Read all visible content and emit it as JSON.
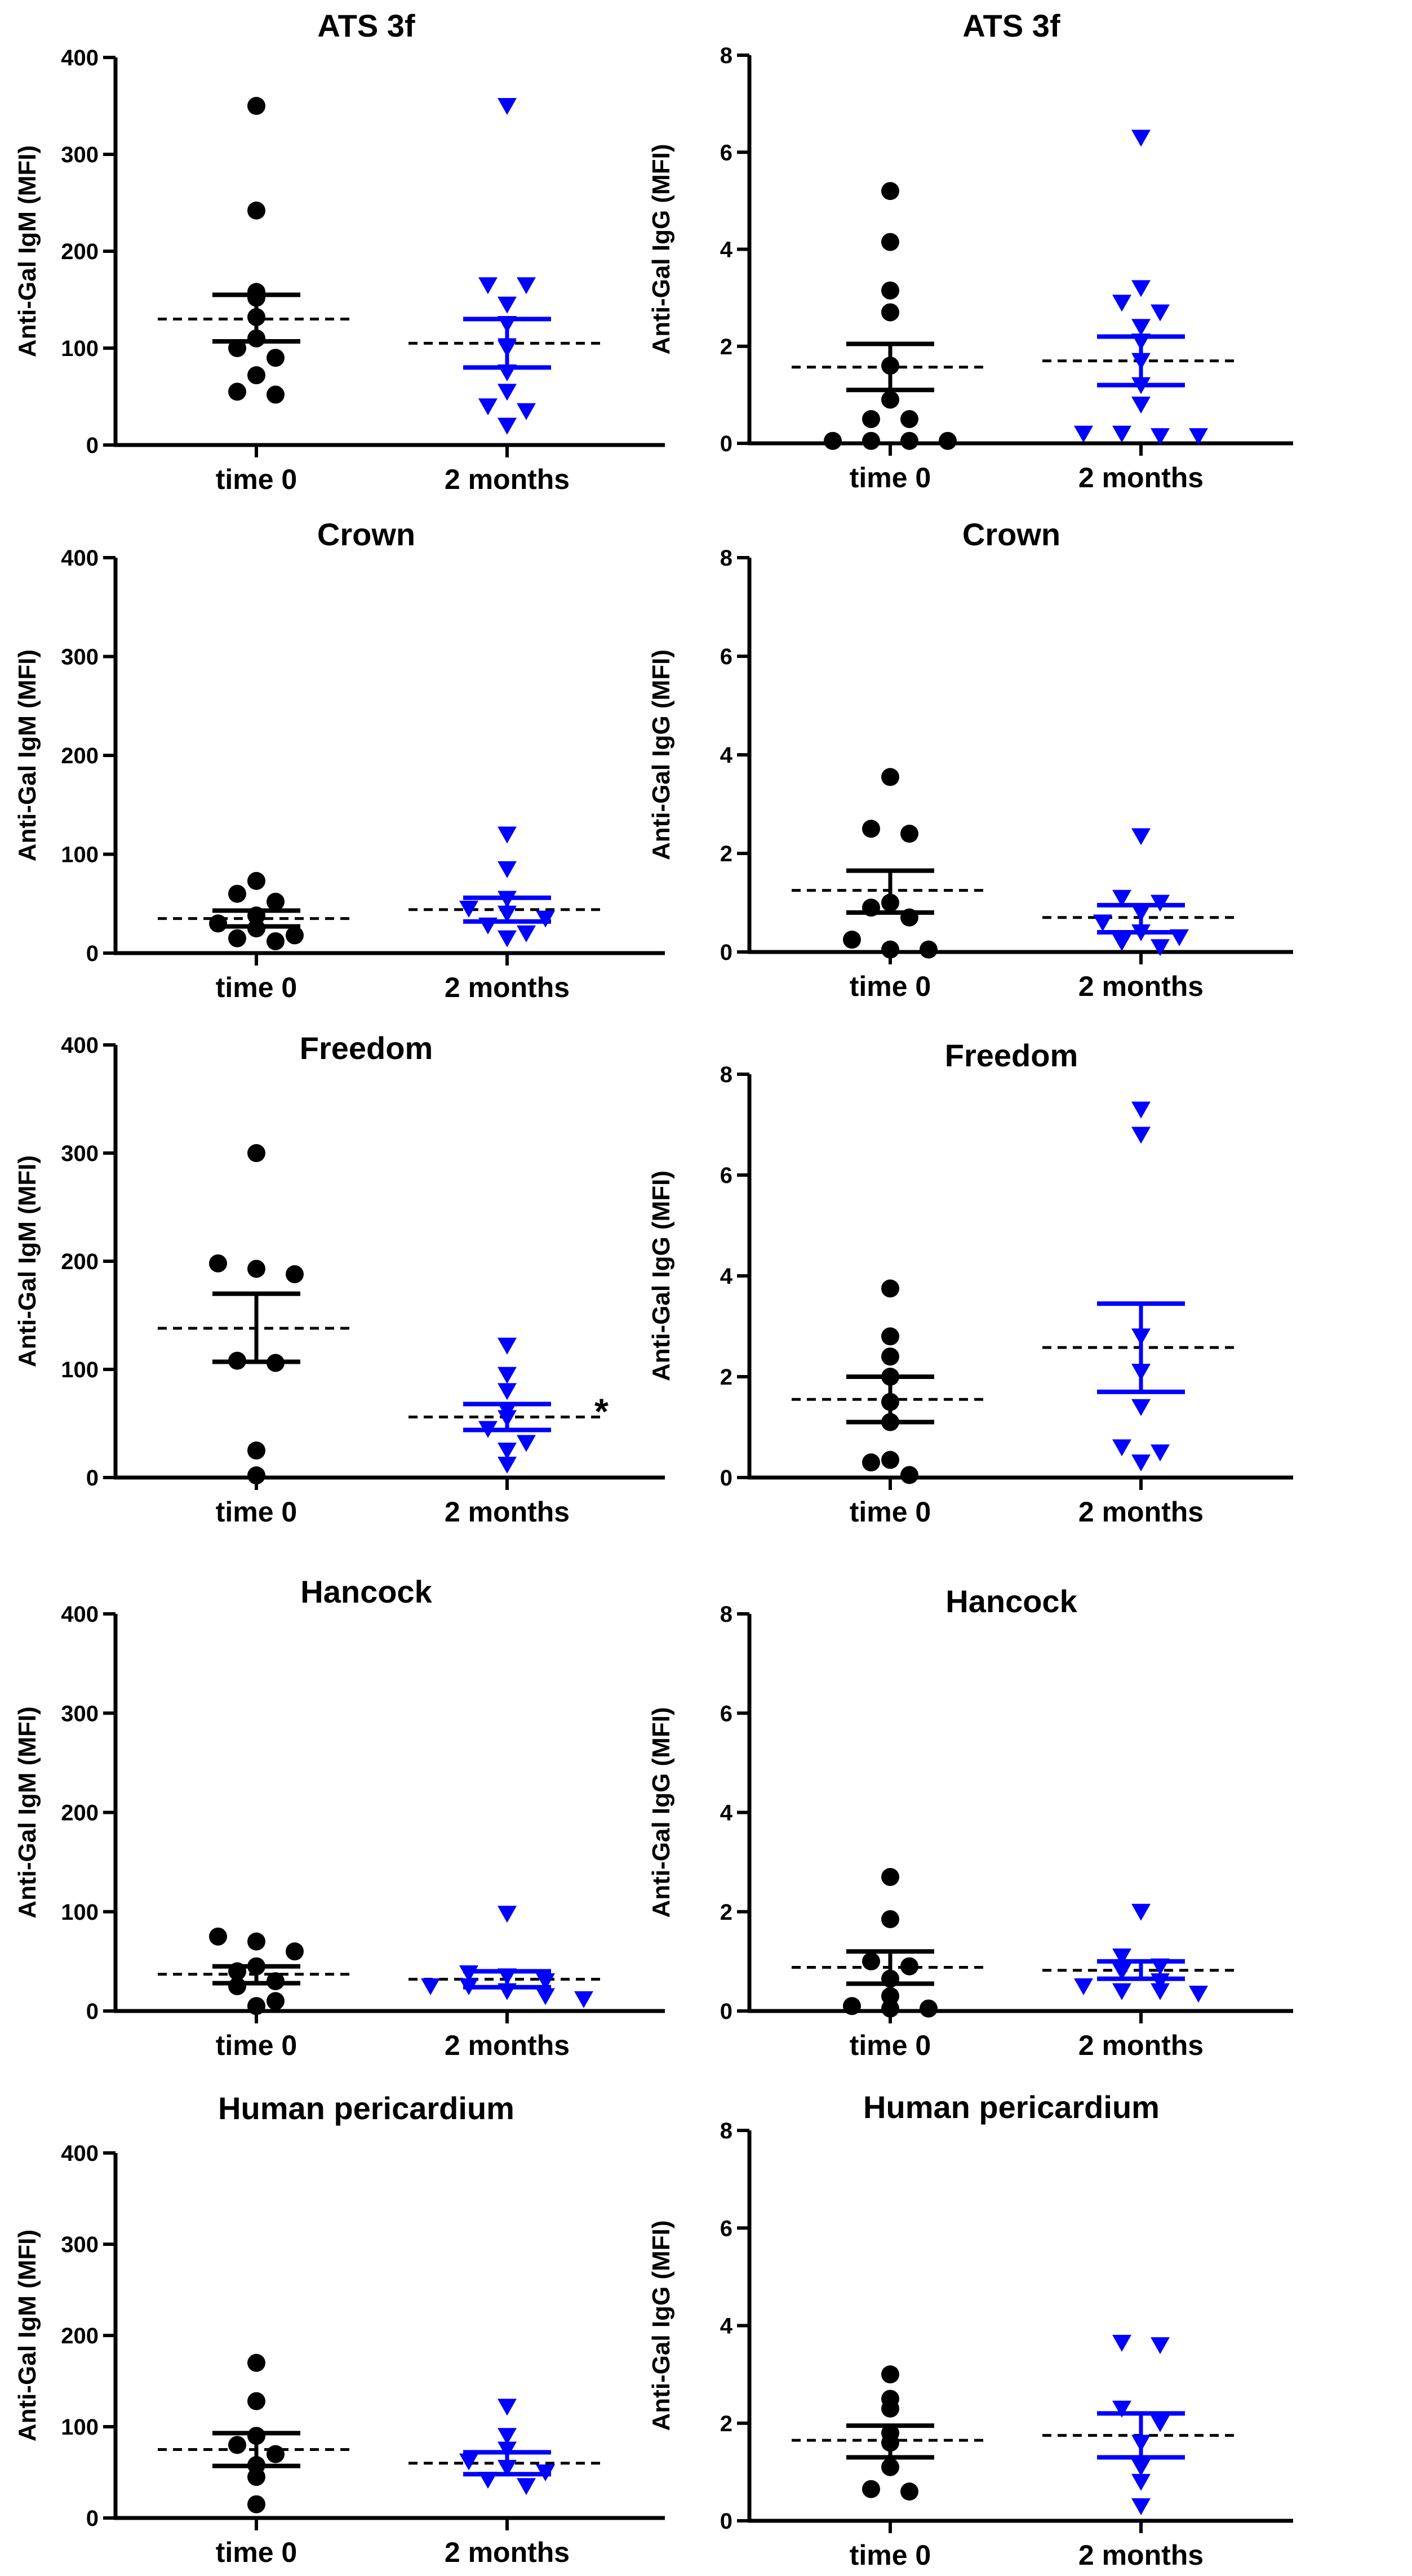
{
  "figure_style": {
    "group_colors": [
      "#000000",
      "#0000ff"
    ],
    "markers": [
      "circle",
      "triangle-down"
    ],
    "mean_line": "dashed black",
    "error_bars": "mean ± SEM"
  },
  "chart_data": [
    {
      "type": "scatter",
      "title": "ATS 3f",
      "ylabel": "Anti-Gal IgM (MFI)",
      "ylim": [
        0,
        400
      ],
      "yticks": [
        0,
        100,
        200,
        300,
        400
      ],
      "categories": [
        "time 0",
        "2 months"
      ],
      "series": [
        {
          "name": "time 0",
          "color": "#000000",
          "marker": "circle",
          "values": [
            350,
            242,
            158,
            152,
            132,
            110,
            100,
            90,
            72,
            55,
            52
          ],
          "mean": 130,
          "sem_lower": 107,
          "sem_upper": 155
        },
        {
          "name": "2 months",
          "color": "#0000ff",
          "marker": "triangle-down",
          "values": [
            350,
            165,
            165,
            145,
            125,
            102,
            100,
            75,
            55,
            40,
            35,
            20
          ],
          "mean": 105,
          "sem_lower": 80,
          "sem_upper": 130
        }
      ]
    },
    {
      "type": "scatter",
      "title": "ATS 3f",
      "ylabel": "Anti-Gal IgG (MFI)",
      "ylim": [
        0,
        8
      ],
      "yticks": [
        0,
        2,
        4,
        6,
        8
      ],
      "categories": [
        "time 0",
        "2 months"
      ],
      "series": [
        {
          "name": "time 0",
          "color": "#000000",
          "marker": "circle",
          "values": [
            5.2,
            4.15,
            3.15,
            2.7,
            1.6,
            0.9,
            0.5,
            0.5,
            0.05,
            0.05,
            0.05,
            0.05
          ],
          "mean": 1.57,
          "sem_lower": 1.1,
          "sem_upper": 2.05
        },
        {
          "name": "2 months",
          "color": "#0000ff",
          "marker": "triangle-down",
          "values": [
            6.3,
            3.2,
            2.9,
            2.7,
            2.4,
            2.1,
            1.7,
            1.2,
            0.8,
            0.2,
            0.2,
            0.15,
            0.15
          ],
          "mean": 1.7,
          "sem_lower": 1.2,
          "sem_upper": 2.2
        }
      ]
    },
    {
      "type": "scatter",
      "title": "Crown",
      "ylabel": "Anti-Gal IgM (MFI)",
      "ylim": [
        0,
        400
      ],
      "yticks": [
        0,
        100,
        200,
        300,
        400
      ],
      "categories": [
        "time 0",
        "2 months"
      ],
      "series": [
        {
          "name": "time 0",
          "color": "#000000",
          "marker": "circle",
          "values": [
            73,
            60,
            52,
            38,
            30,
            25,
            18,
            15,
            12
          ],
          "mean": 35,
          "sem_lower": 27,
          "sem_upper": 43
        },
        {
          "name": "2 months",
          "color": "#0000ff",
          "marker": "triangle-down",
          "values": [
            120,
            85,
            55,
            45,
            40,
            35,
            28,
            20,
            15
          ],
          "mean": 44,
          "sem_lower": 32,
          "sem_upper": 56
        }
      ]
    },
    {
      "type": "scatter",
      "title": "Crown",
      "ylabel": "Anti-Gal IgG (MFI)",
      "ylim": [
        0,
        8
      ],
      "yticks": [
        0,
        2,
        4,
        6,
        8
      ],
      "categories": [
        "time 0",
        "2 months"
      ],
      "series": [
        {
          "name": "time 0",
          "color": "#000000",
          "marker": "circle",
          "values": [
            3.55,
            2.5,
            2.4,
            1.0,
            0.9,
            0.7,
            0.25,
            0.05,
            0.05
          ],
          "mean": 1.25,
          "sem_lower": 0.8,
          "sem_upper": 1.65
        },
        {
          "name": "2 months",
          "color": "#0000ff",
          "marker": "triangle-down",
          "values": [
            2.35,
            1.1,
            1.0,
            0.8,
            0.6,
            0.4,
            0.3,
            0.2,
            0.1
          ],
          "mean": 0.7,
          "sem_lower": 0.4,
          "sem_upper": 0.95
        }
      ]
    },
    {
      "type": "scatter",
      "title": "Freedom",
      "ylabel": "Anti-Gal IgM (MFI)",
      "ylim": [
        0,
        400
      ],
      "yticks": [
        0,
        100,
        200,
        300,
        400
      ],
      "categories": [
        "time 0",
        "2 months"
      ],
      "series": [
        {
          "name": "time 0",
          "color": "#000000",
          "marker": "circle",
          "values": [
            300,
            198,
            193,
            188,
            108,
            106,
            25,
            2
          ],
          "mean": 138,
          "sem_lower": 107,
          "sem_upper": 170
        },
        {
          "name": "2 months",
          "color": "#0000ff",
          "marker": "triangle-down",
          "values": [
            122,
            95,
            80,
            62,
            55,
            45,
            32,
            25,
            12
          ],
          "mean": 56,
          "sem_lower": 44,
          "sem_upper": 68
        }
      ],
      "annotation": "*"
    },
    {
      "type": "scatter",
      "title": "Freedom",
      "ylabel": "Anti-Gal IgG (MFI)",
      "ylim": [
        0,
        8
      ],
      "yticks": [
        0,
        2,
        4,
        6,
        8
      ],
      "categories": [
        "time 0",
        "2 months"
      ],
      "series": [
        {
          "name": "time 0",
          "color": "#000000",
          "marker": "circle",
          "values": [
            3.75,
            2.8,
            2.4,
            2.0,
            1.5,
            1.1,
            0.35,
            0.3,
            0.05
          ],
          "mean": 1.55,
          "sem_lower": 1.1,
          "sem_upper": 2.0
        },
        {
          "name": "2 months",
          "color": "#0000ff",
          "marker": "triangle-down",
          "values": [
            7.3,
            6.8,
            2.8,
            2.1,
            1.4,
            0.6,
            0.5,
            0.3
          ],
          "mean": 2.58,
          "sem_lower": 1.7,
          "sem_upper": 3.45
        }
      ]
    },
    {
      "type": "scatter",
      "title": "Hancock",
      "ylabel": "Anti-Gal IgM (MFI)",
      "ylim": [
        0,
        400
      ],
      "yticks": [
        0,
        100,
        200,
        300,
        400
      ],
      "categories": [
        "time 0",
        "2 months"
      ],
      "series": [
        {
          "name": "time 0",
          "color": "#000000",
          "marker": "circle",
          "values": [
            75,
            70,
            60,
            45,
            40,
            30,
            25,
            10,
            5
          ],
          "mean": 37,
          "sem_lower": 28,
          "sem_upper": 45
        },
        {
          "name": "2 months",
          "color": "#0000ff",
          "marker": "triangle-down",
          "values": [
            98,
            38,
            35,
            30,
            25,
            25,
            20,
            15,
            12
          ],
          "mean": 32,
          "sem_lower": 24,
          "sem_upper": 40
        }
      ]
    },
    {
      "type": "scatter",
      "title": "Hancock",
      "ylabel": "Anti-Gal IgG (MFI)",
      "ylim": [
        0,
        8
      ],
      "yticks": [
        0,
        2,
        4,
        6,
        8
      ],
      "categories": [
        "time 0",
        "2 months"
      ],
      "series": [
        {
          "name": "time 0",
          "color": "#000000",
          "marker": "circle",
          "values": [
            2.7,
            1.85,
            1.0,
            0.9,
            0.65,
            0.3,
            0.1,
            0.05,
            0.05
          ],
          "mean": 0.88,
          "sem_lower": 0.55,
          "sem_upper": 1.2
        },
        {
          "name": "2 months",
          "color": "#0000ff",
          "marker": "triangle-down",
          "values": [
            2.0,
            1.1,
            0.9,
            0.8,
            0.6,
            0.5,
            0.4,
            0.4,
            0.35
          ],
          "mean": 0.82,
          "sem_lower": 0.65,
          "sem_upper": 1.0
        }
      ]
    },
    {
      "type": "scatter",
      "title": "Human pericardium",
      "ylabel": "Anti-Gal IgM (MFI)",
      "ylim": [
        0,
        400
      ],
      "yticks": [
        0,
        100,
        200,
        300,
        400
      ],
      "categories": [
        "time 0",
        "2 months"
      ],
      "series": [
        {
          "name": "time 0",
          "color": "#000000",
          "marker": "circle",
          "values": [
            170,
            128,
            90,
            80,
            70,
            58,
            45,
            15
          ],
          "mean": 75,
          "sem_lower": 57,
          "sem_upper": 93
        },
        {
          "name": "2 months",
          "color": "#0000ff",
          "marker": "triangle-down",
          "values": [
            122,
            90,
            75,
            62,
            55,
            50,
            42,
            35
          ],
          "mean": 60,
          "sem_lower": 48,
          "sem_upper": 72
        }
      ]
    },
    {
      "type": "scatter",
      "title": "Human pericardium",
      "ylabel": "Anti-Gal IgG (MFI)",
      "ylim": [
        0,
        8
      ],
      "yticks": [
        0,
        2,
        4,
        6,
        8
      ],
      "categories": [
        "time 0",
        "2 months"
      ],
      "series": [
        {
          "name": "time 0",
          "color": "#000000",
          "marker": "circle",
          "values": [
            3.0,
            2.5,
            2.3,
            1.8,
            1.6,
            1.1,
            0.65,
            0.6
          ],
          "mean": 1.65,
          "sem_lower": 1.3,
          "sem_upper": 1.95
        },
        {
          "name": "2 months",
          "color": "#0000ff",
          "marker": "triangle-down",
          "values": [
            3.65,
            3.6,
            2.3,
            2.0,
            1.6,
            1.1,
            0.8,
            0.3
          ],
          "mean": 1.75,
          "sem_lower": 1.3,
          "sem_upper": 2.2
        }
      ]
    }
  ]
}
